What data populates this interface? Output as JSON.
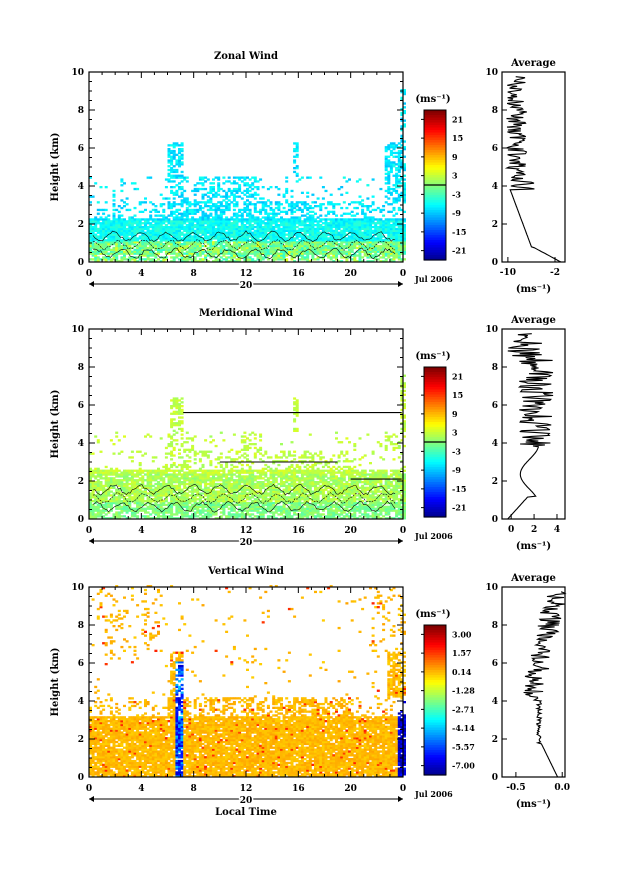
{
  "chart_data": [
    {
      "type": "heatmap",
      "title": "Zonal Wind",
      "ylabel": "Height (km)",
      "xlabel": "",
      "xlim": [
        0,
        24
      ],
      "ylim": [
        0,
        10
      ],
      "x_ticks": [
        "0",
        "4",
        "8",
        "12",
        "16",
        "20",
        "0"
      ],
      "y_ticks": [
        "0",
        "2",
        "4",
        "6",
        "8",
        "10"
      ],
      "date_row": {
        "day": "20",
        "month_year": "Jul 2006"
      },
      "colorbar": {
        "unit": "(ms⁻¹)",
        "ticks": [
          "21",
          "15",
          "9",
          "3",
          "-3",
          "-9",
          "-15",
          "-21"
        ],
        "range": [
          -24,
          24
        ],
        "marked_level": 0
      },
      "average": {
        "title": "Average",
        "xlim": [
          -11,
          -0.3
        ],
        "x_ticks": [
          "-10",
          "-2"
        ],
        "xlabel": "(ms⁻¹)",
        "y_ticks": [
          "0",
          "2",
          "4",
          "6",
          "8",
          "10"
        ]
      },
      "fields": {
        "dominant_range": [
          -9,
          -3
        ],
        "near_surface_range": [
          -4,
          4
        ]
      }
    },
    {
      "type": "heatmap",
      "title": "Meridional Wind",
      "ylabel": "Height (km)",
      "xlabel": "",
      "xlim": [
        0,
        24
      ],
      "ylim": [
        0,
        10
      ],
      "x_ticks": [
        "0",
        "4",
        "8",
        "12",
        "16",
        "20",
        "0"
      ],
      "y_ticks": [
        "0",
        "2",
        "4",
        "6",
        "8",
        "10"
      ],
      "date_row": {
        "day": "20",
        "month_year": "Jul 2006"
      },
      "colorbar": {
        "unit": "(ms⁻¹)",
        "ticks": [
          "21",
          "15",
          "9",
          "3",
          "-3",
          "-9",
          "-15",
          "-21"
        ],
        "range": [
          -24,
          24
        ],
        "marked_level": 0
      },
      "average": {
        "title": "Average",
        "xlim": [
          -0.8,
          4.7
        ],
        "x_ticks": [
          "0",
          "2",
          "4"
        ],
        "xlabel": "(ms⁻¹)",
        "y_ticks": [
          "0",
          "2",
          "4",
          "6",
          "8",
          "10"
        ]
      },
      "fields": {
        "dominant_range": [
          -3,
          6
        ],
        "near_surface_range": [
          -3,
          3
        ]
      }
    },
    {
      "type": "heatmap",
      "title": "Vertical Wind",
      "ylabel": "Height (km)",
      "xlabel": "Local Time",
      "xlim": [
        0,
        24
      ],
      "ylim": [
        0,
        10
      ],
      "x_ticks": [
        "0",
        "4",
        "8",
        "12",
        "16",
        "20",
        "0"
      ],
      "y_ticks": [
        "0",
        "2",
        "4",
        "6",
        "8",
        "10"
      ],
      "date_row": {
        "day": "20",
        "month_year": "Jul 2006"
      },
      "colorbar": {
        "unit": "(ms⁻¹)",
        "ticks": [
          "3.00",
          "1.57",
          "0.14",
          "-1.28",
          "-2.71",
          "-4.14",
          "-5.57",
          "-7.00"
        ],
        "range": [
          -7.7,
          3.7
        ]
      },
      "average": {
        "title": "Average",
        "xlim": [
          -0.65,
          0.03
        ],
        "x_ticks": [
          "-0.5",
          "0.0"
        ],
        "xlabel": "(ms⁻¹)",
        "y_ticks": [
          "0",
          "2",
          "4",
          "6",
          "8",
          "10"
        ]
      },
      "fields": {
        "dominant_range": [
          -0.3,
          0.6
        ],
        "updraft_column_hours": [
          6.9,
          23.7
        ]
      }
    }
  ]
}
